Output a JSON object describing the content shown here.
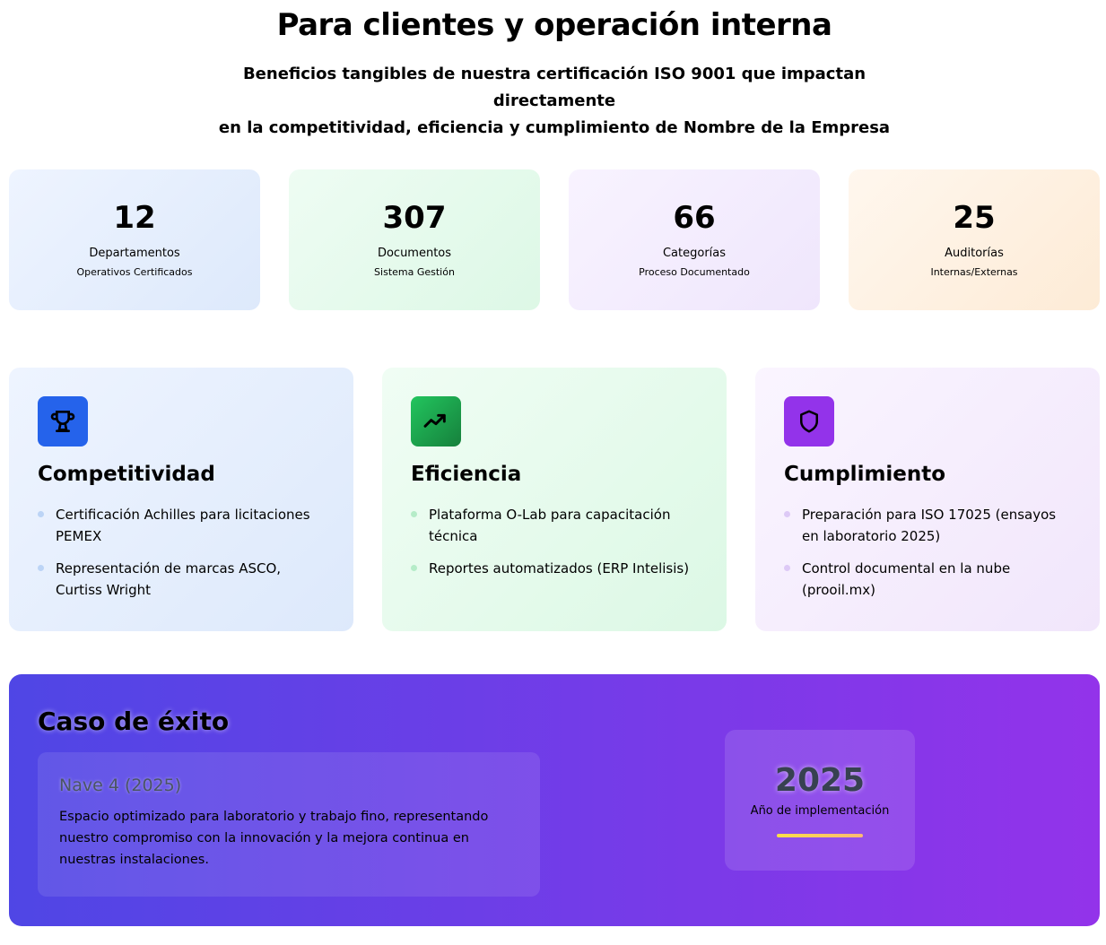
{
  "header": {
    "title": "Para clientes y operación interna",
    "subtitle_line1": "Beneficios tangibles de nuestra certificación ISO 9001 que impactan directamente",
    "subtitle_line2": "en la competitividad, eficiencia y cumplimiento de Nombre de la Empresa"
  },
  "stats": [
    {
      "value": "12",
      "label": "Departamentos",
      "sub": "Operativos Certificados"
    },
    {
      "value": "307",
      "label": "Documentos",
      "sub": "Sistema Gestión"
    },
    {
      "value": "66",
      "label": "Categorías",
      "sub": "Proceso Documentado"
    },
    {
      "value": "25",
      "label": "Auditorías",
      "sub": "Internas/Externas"
    }
  ],
  "features": [
    {
      "icon": "trophy-icon",
      "title": "Competitividad",
      "items": [
        "Certificación Achilles para licitaciones PEMEX",
        "Representación de marcas ASCO, Curtiss Wright"
      ]
    },
    {
      "icon": "trending-up-icon",
      "title": "Eficiencia",
      "items": [
        "Plataforma O-Lab para capacitación técnica",
        "Reportes automatizados (ERP Intelisis)"
      ]
    },
    {
      "icon": "shield-icon",
      "title": "Cumplimiento",
      "items": [
        "Preparación para ISO 17025 (ensayos en laboratorio 2025)",
        "Control documental en la nube (prooil.mx)"
      ]
    }
  ],
  "case": {
    "title": "Caso de éxito",
    "card_title": "Nave 4 (2025)",
    "card_text": "Espacio optimizado para laboratorio y trabajo fino, representando nuestro compromiso con la innovación y la mejora continua en nuestras instalaciones.",
    "year": "2025",
    "year_label": "Año de implementación"
  },
  "colors": {
    "blue": "#2563eb",
    "green": "#16a34a",
    "purple": "#9333ea",
    "case_start": "#4f46e5",
    "case_end": "#9333ea"
  }
}
